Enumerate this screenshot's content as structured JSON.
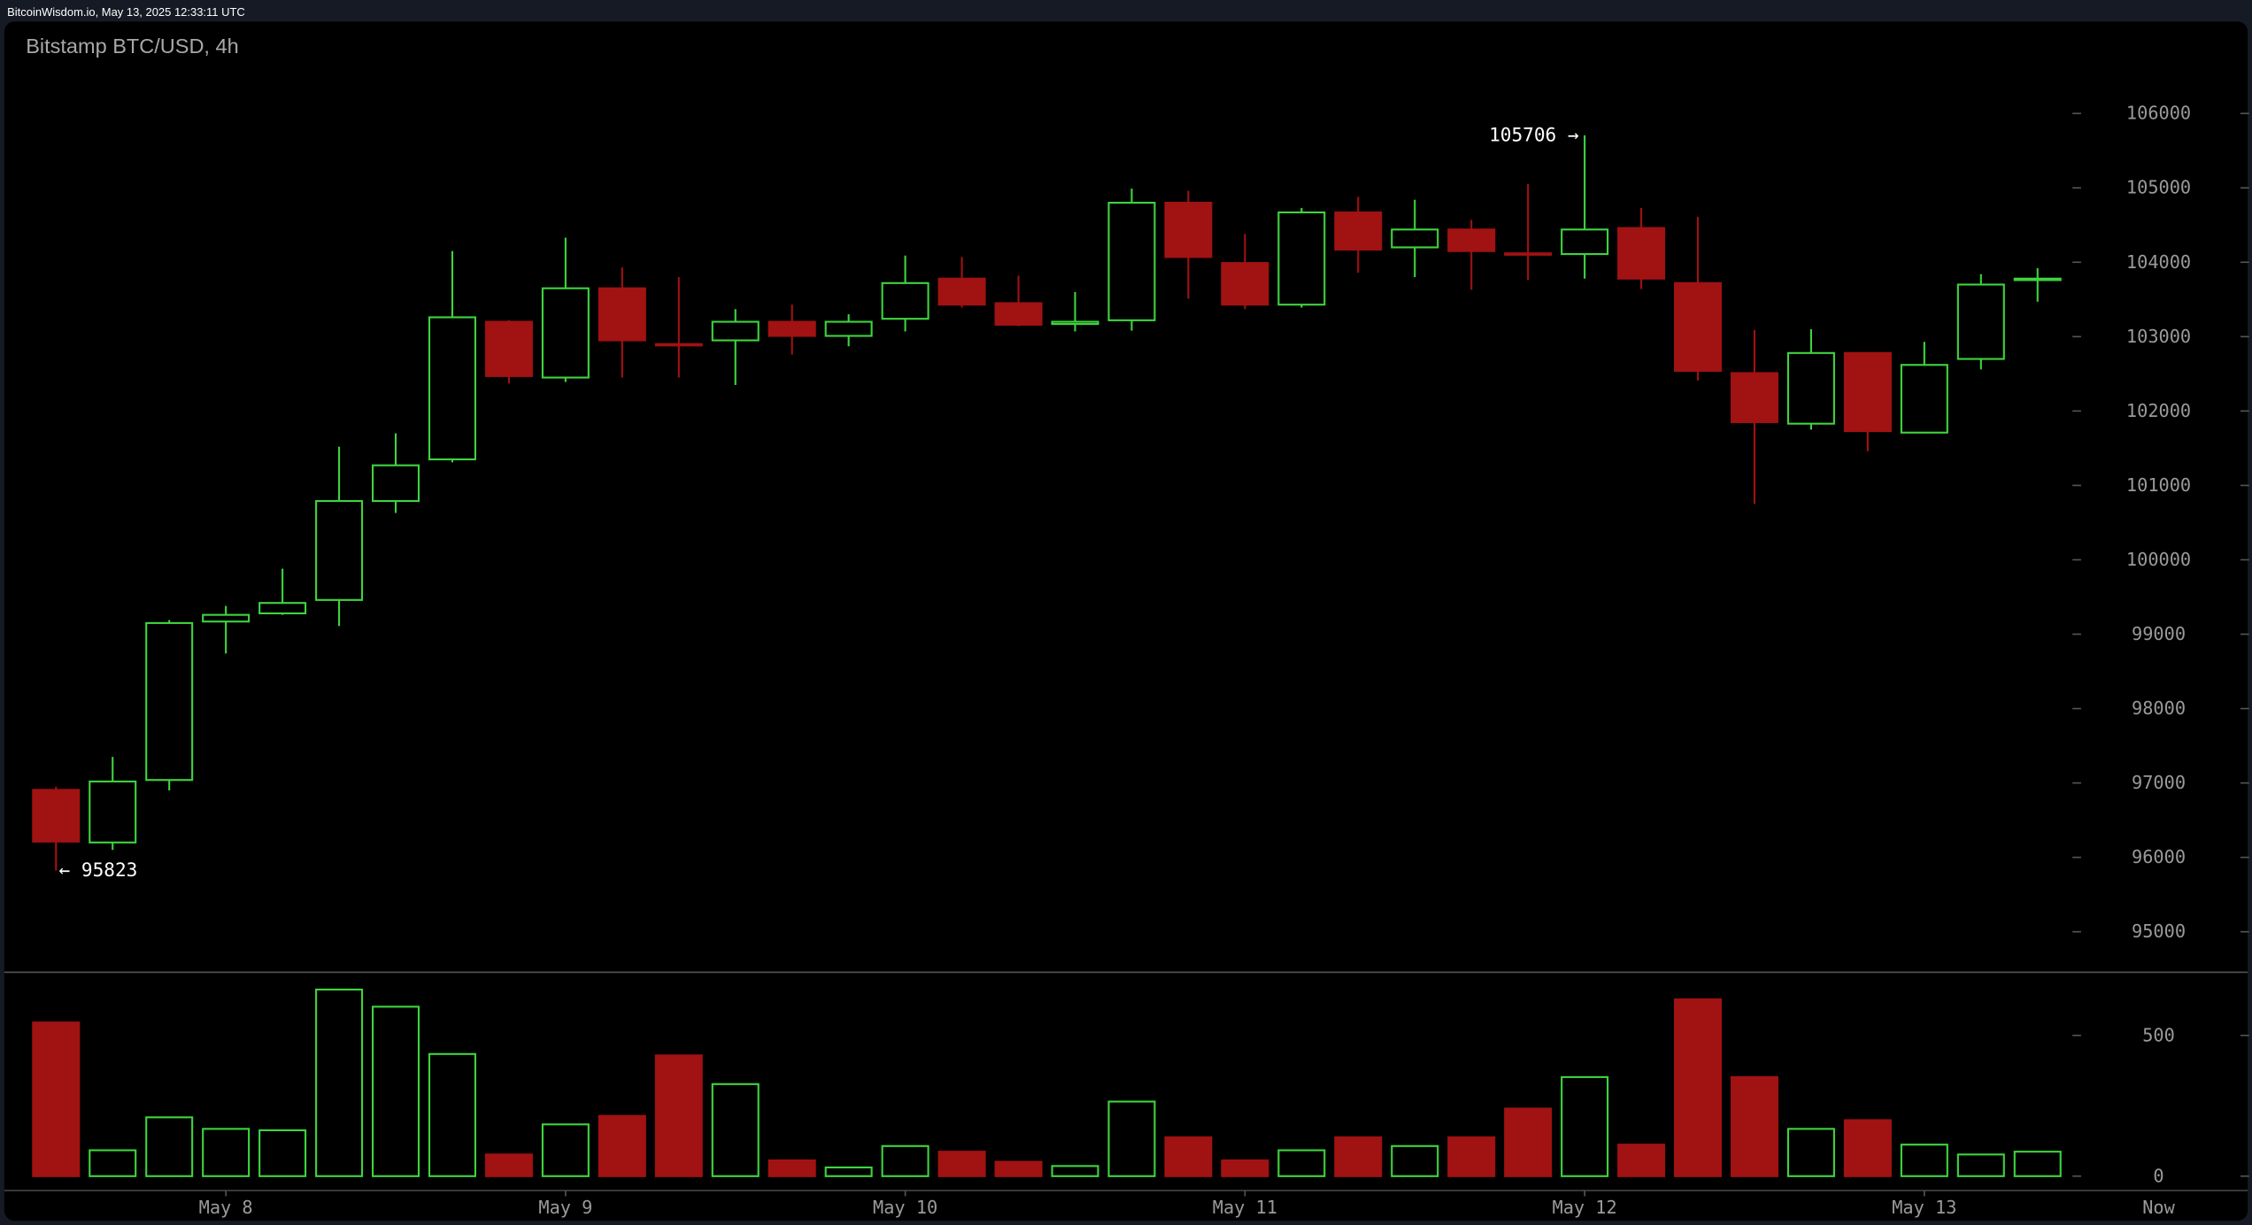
{
  "header": {
    "source_text": "BitcoinWisdom.io, May 13, 2025 12:33:11 UTC"
  },
  "chart_data": {
    "type": "candlestick",
    "title": "Bitstamp BTC/USD, 4h",
    "price_axis": {
      "ticks": [
        "106000",
        "105000",
        "104000",
        "103000",
        "102000",
        "101000",
        "100000",
        "99000",
        "98000",
        "97000",
        "96000",
        "95000"
      ],
      "range": [
        94500,
        106500
      ]
    },
    "volume_axis": {
      "ticks": [
        "500",
        "0"
      ],
      "range": [
        0,
        700
      ]
    },
    "x_labels": [
      {
        "label": "May 8",
        "candle": 3
      },
      {
        "label": "May 9",
        "candle": 9
      },
      {
        "label": "May 10",
        "candle": 15
      },
      {
        "label": "May 11",
        "candle": 21
      },
      {
        "label": "May 12",
        "candle": 27
      },
      {
        "label": "May 13",
        "candle": 33
      }
    ],
    "now_label": "Now",
    "annotations": {
      "high": {
        "text": "105706 →",
        "value": 105706,
        "candle": 27
      },
      "low": {
        "text": "← 95823",
        "value": 95823,
        "candle": 0
      }
    },
    "colors": {
      "up": "#3ed43e",
      "down": "#a11212",
      "background": "#000000"
    },
    "fields": [
      "open",
      "high",
      "low",
      "close",
      "volume"
    ],
    "candles": [
      [
        96907,
        96950,
        95823,
        96212,
        546
      ],
      [
        96200,
        97350,
        96100,
        97020,
        92
      ],
      [
        97040,
        99190,
        96900,
        99150,
        209
      ],
      [
        99170,
        99380,
        98740,
        99260,
        168
      ],
      [
        99280,
        99880,
        99260,
        99420,
        163
      ],
      [
        99460,
        101520,
        99110,
        100790,
        663
      ],
      [
        100790,
        101700,
        100630,
        101270,
        602
      ],
      [
        101350,
        104150,
        101310,
        103260,
        434
      ],
      [
        103200,
        103220,
        102370,
        102470,
        77
      ],
      [
        102450,
        104330,
        102390,
        103650,
        184
      ],
      [
        103650,
        103930,
        102450,
        102950,
        214
      ],
      [
        102900,
        103800,
        102450,
        102890,
        429
      ],
      [
        102950,
        103370,
        102350,
        103200,
        327
      ],
      [
        103200,
        103430,
        102760,
        103010,
        56
      ],
      [
        103010,
        103300,
        102870,
        103200,
        31
      ],
      [
        103240,
        104090,
        103070,
        103720,
        107
      ],
      [
        103780,
        104070,
        103390,
        103430,
        87
      ],
      [
        103450,
        103820,
        103140,
        103160,
        51
      ],
      [
        103170,
        103600,
        103070,
        103200,
        36
      ],
      [
        103220,
        104990,
        103080,
        104800,
        265
      ],
      [
        104800,
        104960,
        103510,
        104070,
        138
      ],
      [
        103990,
        104380,
        103370,
        103430,
        56
      ],
      [
        103430,
        104730,
        103390,
        104670,
        92
      ],
      [
        104670,
        104880,
        103860,
        104170,
        138
      ],
      [
        104200,
        104840,
        103800,
        104440,
        107
      ],
      [
        104440,
        104570,
        103630,
        104150,
        138
      ],
      [
        104120,
        105050,
        103760,
        104110,
        240
      ],
      [
        104110,
        105706,
        103780,
        104440,
        352
      ],
      [
        104460,
        104730,
        103640,
        103780,
        112
      ],
      [
        103720,
        104610,
        102410,
        102540,
        628
      ],
      [
        102510,
        103090,
        100750,
        101850,
        352
      ],
      [
        101830,
        103100,
        101750,
        102780,
        168
      ],
      [
        102780,
        102780,
        101460,
        101730,
        199
      ],
      [
        101710,
        102930,
        101700,
        102620,
        112
      ],
      [
        102700,
        103840,
        102560,
        103700,
        77
      ],
      [
        103760,
        103920,
        103470,
        103780,
        87
      ]
    ]
  }
}
